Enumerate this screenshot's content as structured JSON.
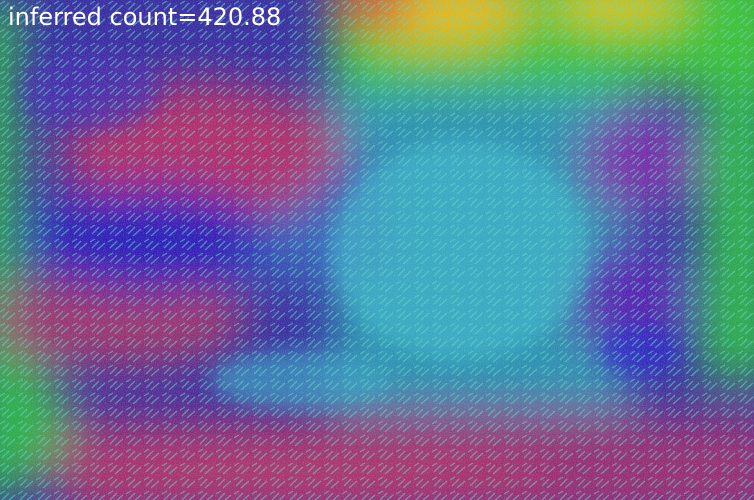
{
  "overlay": {
    "label": "inferred count=420.88"
  },
  "image": {
    "description_icon": "density-heatmap-overlay",
    "colors": {
      "low": "#2a1fb8",
      "mid_low": "#3fb3c7",
      "mid": "#34c23a",
      "mid_high": "#e0c41a",
      "high": "#d8263a",
      "hot_region": "#b42a6a"
    }
  }
}
